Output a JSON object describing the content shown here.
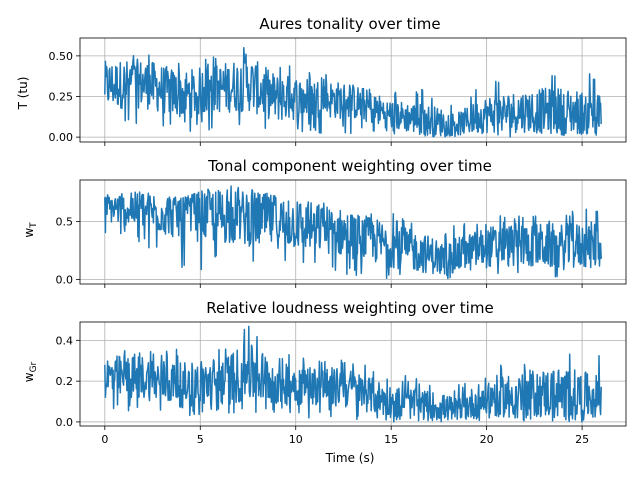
{
  "chart_data": [
    {
      "type": "line",
      "title": "Aures tonality over time",
      "ylabel": "T (tu)",
      "xlabel": "",
      "xlim": [
        -1.3,
        27.3
      ],
      "ylim": [
        -0.03,
        0.61
      ],
      "x_ticks": [
        0,
        5,
        10,
        15,
        20,
        25
      ],
      "x_tick_labels": [],
      "y_ticks": [
        0.0,
        0.25,
        0.5
      ],
      "y_tick_labels": [
        "0.00",
        "0.25",
        "0.50"
      ],
      "grid": true,
      "color": "#1f77b4",
      "envelope": [
        {
          "x": 0,
          "center": 0.32,
          "low": 0.05,
          "high": 0.5
        },
        {
          "x": 2,
          "center": 0.33,
          "low": 0.06,
          "high": 0.52
        },
        {
          "x": 4,
          "center": 0.26,
          "low": 0.02,
          "high": 0.47
        },
        {
          "x": 6,
          "center": 0.3,
          "low": 0.04,
          "high": 0.5
        },
        {
          "x": 7.5,
          "center": 0.33,
          "low": 0.05,
          "high": 0.57
        },
        {
          "x": 9,
          "center": 0.24,
          "low": 0.02,
          "high": 0.47
        },
        {
          "x": 11,
          "center": 0.24,
          "low": 0.02,
          "high": 0.4
        },
        {
          "x": 13,
          "center": 0.22,
          "low": 0.02,
          "high": 0.35
        },
        {
          "x": 15,
          "center": 0.14,
          "low": 0.0,
          "high": 0.28
        },
        {
          "x": 17,
          "center": 0.1,
          "low": 0.0,
          "high": 0.3
        },
        {
          "x": 18.5,
          "center": 0.08,
          "low": 0.0,
          "high": 0.22
        },
        {
          "x": 20,
          "center": 0.14,
          "low": 0.0,
          "high": 0.35
        },
        {
          "x": 22,
          "center": 0.16,
          "low": 0.0,
          "high": 0.4
        },
        {
          "x": 24,
          "center": 0.16,
          "low": 0.0,
          "high": 0.45
        },
        {
          "x": 26,
          "center": 0.14,
          "low": 0.0,
          "high": 0.38
        }
      ]
    },
    {
      "type": "line",
      "title": "Tonal component weighting over time",
      "ylabel": "wT",
      "ylabel_main": "w",
      "ylabel_sub": "T",
      "xlabel": "",
      "xlim": [
        -1.3,
        27.3
      ],
      "ylim": [
        -0.04,
        0.86
      ],
      "x_ticks": [
        0,
        5,
        10,
        15,
        20,
        25
      ],
      "x_tick_labels": [],
      "y_ticks": [
        0.0,
        0.5
      ],
      "y_tick_labels": [
        "0.0",
        "0.5"
      ],
      "grid": true,
      "color": "#1f77b4",
      "envelope": [
        {
          "x": 0,
          "center": 0.62,
          "low": 0.4,
          "high": 0.78
        },
        {
          "x": 2,
          "center": 0.6,
          "low": 0.3,
          "high": 0.78
        },
        {
          "x": 4,
          "center": 0.55,
          "low": 0.05,
          "high": 0.7
        },
        {
          "x": 6,
          "center": 0.55,
          "low": 0.1,
          "high": 0.82
        },
        {
          "x": 8,
          "center": 0.52,
          "low": 0.05,
          "high": 0.78
        },
        {
          "x": 10,
          "center": 0.48,
          "low": 0.05,
          "high": 0.72
        },
        {
          "x": 12,
          "center": 0.42,
          "low": 0.02,
          "high": 0.65
        },
        {
          "x": 14,
          "center": 0.34,
          "low": 0.0,
          "high": 0.6
        },
        {
          "x": 16,
          "center": 0.25,
          "low": 0.0,
          "high": 0.55
        },
        {
          "x": 18,
          "center": 0.18,
          "low": 0.0,
          "high": 0.45
        },
        {
          "x": 20,
          "center": 0.28,
          "low": 0.0,
          "high": 0.55
        },
        {
          "x": 22,
          "center": 0.3,
          "low": 0.0,
          "high": 0.58
        },
        {
          "x": 24,
          "center": 0.28,
          "low": 0.0,
          "high": 0.6
        },
        {
          "x": 26,
          "center": 0.3,
          "low": 0.0,
          "high": 0.62
        }
      ]
    },
    {
      "type": "line",
      "title": "Relative loudness weighting over time",
      "ylabel": "wGr",
      "ylabel_main": "w",
      "ylabel_sub": "Gr",
      "xlabel": "Time (s)",
      "xlim": [
        -1.3,
        27.3
      ],
      "ylim": [
        -0.02,
        0.49
      ],
      "x_ticks": [
        0,
        5,
        10,
        15,
        20,
        25
      ],
      "x_tick_labels": [
        "0",
        "5",
        "10",
        "15",
        "20",
        "25"
      ],
      "y_ticks": [
        0.0,
        0.2,
        0.4
      ],
      "y_tick_labels": [
        "0.0",
        "0.2",
        "0.4"
      ],
      "grid": true,
      "color": "#1f77b4",
      "envelope": [
        {
          "x": 0,
          "center": 0.22,
          "low": 0.05,
          "high": 0.37
        },
        {
          "x": 2,
          "center": 0.22,
          "low": 0.05,
          "high": 0.38
        },
        {
          "x": 4,
          "center": 0.18,
          "low": 0.03,
          "high": 0.36
        },
        {
          "x": 6,
          "center": 0.2,
          "low": 0.03,
          "high": 0.4
        },
        {
          "x": 7.5,
          "center": 0.24,
          "low": 0.04,
          "high": 0.48
        },
        {
          "x": 9,
          "center": 0.2,
          "low": 0.02,
          "high": 0.38
        },
        {
          "x": 11,
          "center": 0.18,
          "low": 0.02,
          "high": 0.32
        },
        {
          "x": 13,
          "center": 0.16,
          "low": 0.01,
          "high": 0.3
        },
        {
          "x": 15,
          "center": 0.1,
          "low": 0.0,
          "high": 0.24
        },
        {
          "x": 17,
          "center": 0.08,
          "low": 0.0,
          "high": 0.22
        },
        {
          "x": 18.5,
          "center": 0.06,
          "low": 0.0,
          "high": 0.18
        },
        {
          "x": 20,
          "center": 0.12,
          "low": 0.0,
          "high": 0.3
        },
        {
          "x": 22,
          "center": 0.14,
          "low": 0.0,
          "high": 0.34
        },
        {
          "x": 24,
          "center": 0.14,
          "low": 0.0,
          "high": 0.4
        },
        {
          "x": 26,
          "center": 0.12,
          "low": 0.0,
          "high": 0.32
        }
      ]
    }
  ]
}
